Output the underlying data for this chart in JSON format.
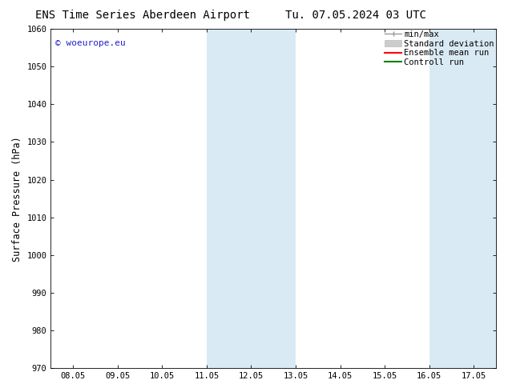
{
  "title": "ENS Time Series Aberdeen Airport",
  "title2": "Tu. 07.05.2024 03 UTC",
  "ylabel": "Surface Pressure (hPa)",
  "ylim": [
    970,
    1060
  ],
  "yticks": [
    970,
    980,
    990,
    1000,
    1010,
    1020,
    1030,
    1040,
    1050,
    1060
  ],
  "x_labels": [
    "08.05",
    "09.05",
    "10.05",
    "11.05",
    "12.05",
    "13.05",
    "14.05",
    "15.05",
    "16.05",
    "17.05"
  ],
  "x_values": [
    0,
    1,
    2,
    3,
    4,
    5,
    6,
    7,
    8,
    9
  ],
  "xlim": [
    -0.5,
    9.5
  ],
  "shaded_regions": [
    {
      "x_start": 3.0,
      "x_end": 5.0,
      "color": "#daeaf5"
    },
    {
      "x_start": 8.0,
      "x_end": 9.5,
      "color": "#daeaf5"
    }
  ],
  "watermark_text": "© woeurope.eu",
  "watermark_color": "#2222cc",
  "background_color": "#ffffff",
  "tick_fontsize": 7.5,
  "title_fontsize": 10,
  "ylabel_fontsize": 8.5,
  "watermark_fontsize": 8
}
